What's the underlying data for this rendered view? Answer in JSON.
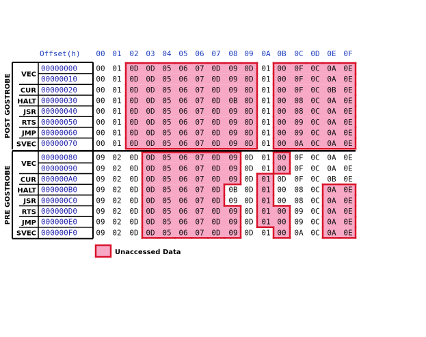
{
  "header": {
    "offset_label": "Offset(h)",
    "columns": [
      "00",
      "01",
      "02",
      "03",
      "04",
      "05",
      "06",
      "07",
      "08",
      "09",
      "0A",
      "0B",
      "0C",
      "0D",
      "0E",
      "0F"
    ]
  },
  "groups": [
    {
      "name": "POST GOSTROBE",
      "row_start": 0,
      "row_end": 7
    },
    {
      "name": "PRE GOSTROBE",
      "row_start": 8,
      "row_end": 15
    }
  ],
  "row_labels": [
    {
      "label": "VEC",
      "rows": [
        0,
        1
      ]
    },
    {
      "label": "CUR",
      "rows": [
        2,
        2
      ]
    },
    {
      "label": "HALT",
      "rows": [
        3,
        3
      ]
    },
    {
      "label": "JSR",
      "rows": [
        4,
        4
      ]
    },
    {
      "label": "RTS",
      "rows": [
        5,
        5
      ]
    },
    {
      "label": "JMP",
      "rows": [
        6,
        6
      ]
    },
    {
      "label": "SVEC",
      "rows": [
        7,
        7
      ]
    },
    {
      "label": "VEC",
      "rows": [
        8,
        9
      ]
    },
    {
      "label": "CUR",
      "rows": [
        10,
        10
      ]
    },
    {
      "label": "HALT",
      "rows": [
        11,
        11
      ]
    },
    {
      "label": "JSR",
      "rows": [
        12,
        12
      ]
    },
    {
      "label": "RTS",
      "rows": [
        13,
        13
      ]
    },
    {
      "label": "JMP",
      "rows": [
        14,
        14
      ]
    },
    {
      "label": "SVEC",
      "rows": [
        15,
        15
      ]
    }
  ],
  "rows": [
    {
      "offset": "00000000",
      "bytes": [
        "00",
        "01",
        "0D",
        "0D",
        "05",
        "06",
        "07",
        "0D",
        "09",
        "0D",
        "01",
        "00",
        "0F",
        "0C",
        "0A",
        "0E"
      ]
    },
    {
      "offset": "00000010",
      "bytes": [
        "00",
        "01",
        "0D",
        "0D",
        "05",
        "06",
        "07",
        "0D",
        "09",
        "0D",
        "01",
        "00",
        "0F",
        "0C",
        "0A",
        "0E"
      ]
    },
    {
      "offset": "00000020",
      "bytes": [
        "00",
        "01",
        "0D",
        "0D",
        "05",
        "06",
        "07",
        "0D",
        "09",
        "0D",
        "01",
        "00",
        "0F",
        "0C",
        "0B",
        "0E"
      ]
    },
    {
      "offset": "00000030",
      "bytes": [
        "00",
        "01",
        "0D",
        "0D",
        "05",
        "06",
        "07",
        "0D",
        "0B",
        "0D",
        "01",
        "00",
        "08",
        "0C",
        "0A",
        "0E"
      ]
    },
    {
      "offset": "00000040",
      "bytes": [
        "00",
        "01",
        "0D",
        "0D",
        "05",
        "06",
        "07",
        "0D",
        "09",
        "0D",
        "01",
        "00",
        "08",
        "0C",
        "0A",
        "0E"
      ]
    },
    {
      "offset": "00000050",
      "bytes": [
        "00",
        "01",
        "0D",
        "0D",
        "05",
        "06",
        "07",
        "0D",
        "09",
        "0D",
        "01",
        "00",
        "09",
        "0C",
        "0A",
        "0E"
      ]
    },
    {
      "offset": "00000060",
      "bytes": [
        "00",
        "01",
        "0D",
        "0D",
        "05",
        "06",
        "07",
        "0D",
        "09",
        "0D",
        "01",
        "00",
        "09",
        "0C",
        "0A",
        "0E"
      ]
    },
    {
      "offset": "00000070",
      "bytes": [
        "00",
        "01",
        "0D",
        "0D",
        "05",
        "06",
        "07",
        "0D",
        "09",
        "0D",
        "01",
        "00",
        "0A",
        "0C",
        "0A",
        "0E"
      ]
    },
    {
      "offset": "00000080",
      "bytes": [
        "09",
        "02",
        "0D",
        "0D",
        "05",
        "06",
        "07",
        "0D",
        "09",
        "0D",
        "01",
        "00",
        "0F",
        "0C",
        "0A",
        "0E"
      ]
    },
    {
      "offset": "00000090",
      "bytes": [
        "09",
        "02",
        "0D",
        "0D",
        "05",
        "06",
        "07",
        "0D",
        "09",
        "0D",
        "01",
        "00",
        "0F",
        "0C",
        "0A",
        "0E"
      ]
    },
    {
      "offset": "000000A0",
      "bytes": [
        "09",
        "02",
        "0D",
        "0D",
        "05",
        "06",
        "07",
        "0D",
        "09",
        "0D",
        "01",
        "0D",
        "0F",
        "0C",
        "0B",
        "0E"
      ]
    },
    {
      "offset": "000000B0",
      "bytes": [
        "09",
        "02",
        "0D",
        "0D",
        "05",
        "06",
        "07",
        "0D",
        "0B",
        "0D",
        "01",
        "00",
        "08",
        "0C",
        "0A",
        "0E"
      ]
    },
    {
      "offset": "000000C0",
      "bytes": [
        "09",
        "02",
        "0D",
        "0D",
        "05",
        "06",
        "07",
        "0D",
        "09",
        "0D",
        "01",
        "00",
        "08",
        "0C",
        "0A",
        "0E"
      ]
    },
    {
      "offset": "000000D0",
      "bytes": [
        "09",
        "02",
        "0D",
        "0D",
        "05",
        "06",
        "07",
        "0D",
        "09",
        "0D",
        "01",
        "00",
        "09",
        "0C",
        "0A",
        "0E"
      ]
    },
    {
      "offset": "000000E0",
      "bytes": [
        "09",
        "02",
        "0D",
        "0D",
        "05",
        "06",
        "07",
        "0D",
        "09",
        "0D",
        "01",
        "00",
        "09",
        "0C",
        "0A",
        "0E"
      ]
    },
    {
      "offset": "000000F0",
      "bytes": [
        "09",
        "02",
        "0D",
        "0D",
        "05",
        "06",
        "07",
        "0D",
        "09",
        "0D",
        "01",
        "00",
        "0A",
        "0C",
        "0A",
        "0E"
      ]
    }
  ],
  "unaccessed": [
    {
      "row": 0,
      "cols": [
        2,
        3,
        4,
        5,
        6,
        7,
        8,
        9,
        11,
        12,
        13,
        14,
        15
      ]
    },
    {
      "row": 1,
      "cols": [
        2,
        3,
        4,
        5,
        6,
        7,
        8,
        9,
        11,
        12,
        13,
        14,
        15
      ]
    },
    {
      "row": 2,
      "cols": [
        2,
        3,
        4,
        5,
        6,
        7,
        8,
        9,
        11,
        12,
        13,
        14,
        15
      ]
    },
    {
      "row": 3,
      "cols": [
        2,
        3,
        4,
        5,
        6,
        7,
        8,
        9,
        11,
        12,
        13,
        14,
        15
      ]
    },
    {
      "row": 4,
      "cols": [
        2,
        3,
        4,
        5,
        6,
        7,
        8,
        9,
        11,
        12,
        13,
        14,
        15
      ]
    },
    {
      "row": 5,
      "cols": [
        2,
        3,
        4,
        5,
        6,
        7,
        8,
        9,
        11,
        12,
        13,
        14,
        15
      ]
    },
    {
      "row": 6,
      "cols": [
        2,
        3,
        4,
        5,
        6,
        7,
        8,
        9,
        11,
        12,
        13,
        14,
        15
      ]
    },
    {
      "row": 7,
      "cols": [
        2,
        3,
        4,
        5,
        6,
        7,
        8,
        9,
        11,
        12,
        13,
        14,
        15
      ]
    },
    {
      "row": 8,
      "cols": [
        3,
        4,
        5,
        6,
        7,
        8,
        11
      ]
    },
    {
      "row": 9,
      "cols": [
        3,
        4,
        5,
        6,
        7,
        8,
        11
      ]
    },
    {
      "row": 10,
      "cols": [
        3,
        4,
        5,
        6,
        7,
        8,
        10
      ]
    },
    {
      "row": 11,
      "cols": [
        3,
        4,
        5,
        6,
        7,
        10,
        14,
        15
      ]
    },
    {
      "row": 12,
      "cols": [
        3,
        4,
        5,
        6,
        7,
        10,
        14,
        15
      ]
    },
    {
      "row": 13,
      "cols": [
        3,
        4,
        5,
        6,
        7,
        8,
        10,
        11,
        14,
        15
      ]
    },
    {
      "row": 14,
      "cols": [
        3,
        4,
        5,
        6,
        7,
        8,
        10,
        11,
        14,
        15
      ]
    },
    {
      "row": 15,
      "cols": [
        3,
        4,
        5,
        6,
        7,
        8,
        11,
        14,
        15
      ]
    }
  ],
  "colors": {
    "highlight_fill": "#f7a8c4",
    "highlight_border": "#d9142b",
    "header_text": "#1f3fbf",
    "offset_text": "#2a2ab0",
    "byte_text": "#111111"
  },
  "legend": {
    "label": "Unaccessed Data"
  }
}
